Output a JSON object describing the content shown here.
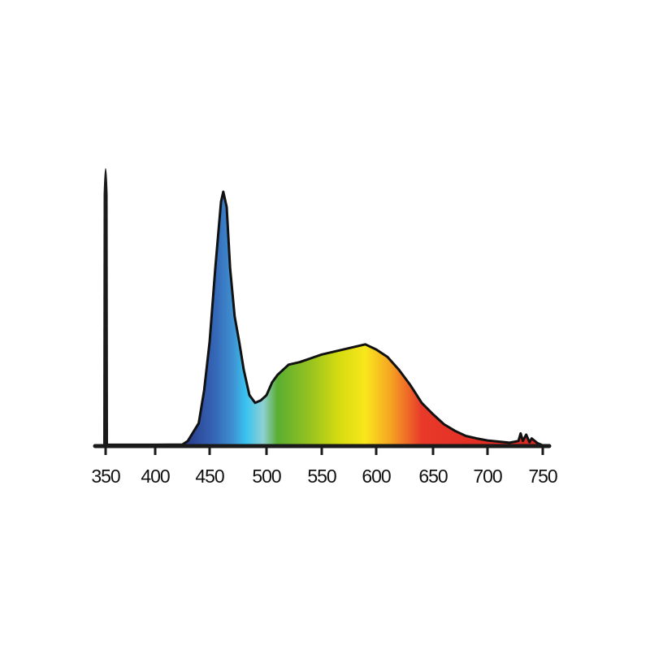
{
  "chart_data": {
    "type": "area",
    "title": "",
    "xlabel": "",
    "ylabel": "",
    "xlim": [
      350,
      750
    ],
    "ylim": [
      0,
      1.1
    ],
    "grid": false,
    "legend": "none",
    "x_ticks": [
      "350",
      "400",
      "450",
      "500",
      "550",
      "600",
      "650",
      "700",
      "750"
    ],
    "fill": "visible-spectrum gradient",
    "series": [
      {
        "x": [
          350,
          400,
          425,
          430,
          440,
          445,
          450,
          455,
          460,
          462,
          465,
          468,
          472,
          476,
          480,
          485,
          490,
          495,
          500,
          505,
          510,
          520,
          530,
          540,
          550,
          560,
          570,
          580,
          590,
          600,
          610,
          620,
          630,
          640,
          650,
          660,
          670,
          680,
          690,
          700,
          720,
          728,
          730,
          732,
          735,
          738,
          740,
          745,
          750
        ],
        "values": [
          0.005,
          0.005,
          0.006,
          0.02,
          0.09,
          0.22,
          0.41,
          0.7,
          0.96,
          1.0,
          0.94,
          0.7,
          0.51,
          0.41,
          0.3,
          0.2,
          0.17,
          0.18,
          0.2,
          0.25,
          0.28,
          0.32,
          0.33,
          0.345,
          0.36,
          0.37,
          0.38,
          0.39,
          0.4,
          0.38,
          0.35,
          0.3,
          0.24,
          0.17,
          0.125,
          0.086,
          0.06,
          0.04,
          0.03,
          0.022,
          0.013,
          0.02,
          0.05,
          0.02,
          0.045,
          0.015,
          0.03,
          0.012,
          0.003
        ]
      }
    ],
    "colors": {
      "line": "#111111",
      "axis": "#1a1a1a"
    },
    "spectrum_stops": [
      {
        "nm": 430,
        "color": "#2b3d8f"
      },
      {
        "nm": 455,
        "color": "#3568b8"
      },
      {
        "nm": 470,
        "color": "#3f8fd0"
      },
      {
        "nm": 482,
        "color": "#38c3f0"
      },
      {
        "nm": 497,
        "color": "#8fd0d4"
      },
      {
        "nm": 510,
        "color": "#5aae32"
      },
      {
        "nm": 540,
        "color": "#98c320"
      },
      {
        "nm": 565,
        "color": "#d4db10"
      },
      {
        "nm": 590,
        "color": "#f8e71c"
      },
      {
        "nm": 612,
        "color": "#f6a623"
      },
      {
        "nm": 640,
        "color": "#e8392a"
      },
      {
        "nm": 700,
        "color": "#e22d24"
      },
      {
        "nm": 750,
        "color": "#d92a22"
      }
    ]
  }
}
